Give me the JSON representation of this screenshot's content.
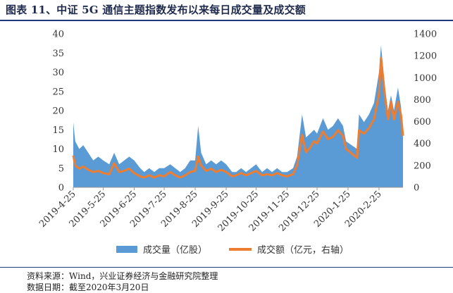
{
  "title": "图表 11、中证 5G 通信主题指数发布以来每日成交量及成交额",
  "source": "资料来源：Wind，兴业证券经济与金融研究院整理",
  "date_note": "数据日期：截至2020年3月20日",
  "chart_data": {
    "type": "area",
    "title": "",
    "x_tick_labels": [
      "2019-4-25",
      "2019-5-25",
      "2019-6-25",
      "2019-7-25",
      "2019-8-25",
      "2019-9-25",
      "2019-10-25",
      "2019-11-25",
      "2019-12-25",
      "2020-1-25",
      "2020-2-25"
    ],
    "x_range": [
      "2019-04-25",
      "2020-03-20"
    ],
    "y_left": {
      "min": 0,
      "max": 40,
      "step": 5,
      "ticks": [
        "0",
        "5",
        "10",
        "15",
        "20",
        "25",
        "30",
        "35",
        "40"
      ]
    },
    "y_right": {
      "min": 0,
      "max": 1400,
      "step": 200,
      "ticks": [
        "0",
        "200",
        "400",
        "600",
        "800",
        "1000",
        "1200",
        "1400"
      ]
    },
    "legend": {
      "position": "bottom"
    },
    "grid": false,
    "series": [
      {
        "name": "成交量（亿股）",
        "kind": "area",
        "axis": "left",
        "color": "#5b9bd5",
        "points": [
          [
            "2019-04-25",
            17
          ],
          [
            "2019-04-27",
            12
          ],
          [
            "2019-05-01",
            10
          ],
          [
            "2019-05-05",
            11
          ],
          [
            "2019-05-10",
            9
          ],
          [
            "2019-05-15",
            7
          ],
          [
            "2019-05-20",
            8
          ],
          [
            "2019-05-25",
            7
          ],
          [
            "2019-05-31",
            6
          ],
          [
            "2019-06-05",
            9
          ],
          [
            "2019-06-10",
            6
          ],
          [
            "2019-06-15",
            7
          ],
          [
            "2019-06-20",
            8
          ],
          [
            "2019-06-25",
            7
          ],
          [
            "2019-07-01",
            5
          ],
          [
            "2019-07-05",
            4
          ],
          [
            "2019-07-10",
            5
          ],
          [
            "2019-07-15",
            4
          ],
          [
            "2019-07-20",
            5
          ],
          [
            "2019-07-25",
            5
          ],
          [
            "2019-07-31",
            6
          ],
          [
            "2019-08-05",
            5
          ],
          [
            "2019-08-10",
            4
          ],
          [
            "2019-08-15",
            5
          ],
          [
            "2019-08-20",
            7
          ],
          [
            "2019-08-25",
            7
          ],
          [
            "2019-08-28",
            16
          ],
          [
            "2019-08-31",
            9
          ],
          [
            "2019-09-05",
            6
          ],
          [
            "2019-09-10",
            7
          ],
          [
            "2019-09-15",
            6
          ],
          [
            "2019-09-20",
            7
          ],
          [
            "2019-09-25",
            6
          ],
          [
            "2019-10-01",
            4
          ],
          [
            "2019-10-05",
            4
          ],
          [
            "2019-10-10",
            5
          ],
          [
            "2019-10-15",
            4
          ],
          [
            "2019-10-20",
            5
          ],
          [
            "2019-10-25",
            6
          ],
          [
            "2019-10-31",
            4
          ],
          [
            "2019-11-05",
            5
          ],
          [
            "2019-11-10",
            4
          ],
          [
            "2019-11-15",
            5
          ],
          [
            "2019-11-20",
            4
          ],
          [
            "2019-11-25",
            4
          ],
          [
            "2019-12-01",
            5
          ],
          [
            "2019-12-05",
            8
          ],
          [
            "2019-12-10",
            19
          ],
          [
            "2019-12-14",
            13
          ],
          [
            "2019-12-18",
            14
          ],
          [
            "2019-12-22",
            15
          ],
          [
            "2019-12-25",
            14
          ],
          [
            "2019-12-31",
            18
          ],
          [
            "2020-01-05",
            15
          ],
          [
            "2020-01-10",
            16
          ],
          [
            "2020-01-15",
            18
          ],
          [
            "2020-01-20",
            16
          ],
          [
            "2020-01-23",
            12
          ],
          [
            "2020-02-03",
            10
          ],
          [
            "2020-02-05",
            19
          ],
          [
            "2020-02-10",
            17
          ],
          [
            "2020-02-15",
            19
          ],
          [
            "2020-02-20",
            22
          ],
          [
            "2020-02-25",
            30
          ],
          [
            "2020-02-27",
            37
          ],
          [
            "2020-03-02",
            26
          ],
          [
            "2020-03-05",
            20
          ],
          [
            "2020-03-08",
            24
          ],
          [
            "2020-03-11",
            20
          ],
          [
            "2020-03-15",
            26
          ],
          [
            "2020-03-18",
            21
          ],
          [
            "2020-03-20",
            13
          ]
        ]
      },
      {
        "name": "成交额（亿元，右轴）",
        "kind": "line",
        "axis": "right",
        "color": "#ed7d31",
        "points": [
          [
            "2019-04-25",
            290
          ],
          [
            "2019-04-27",
            200
          ],
          [
            "2019-05-01",
            170
          ],
          [
            "2019-05-05",
            190
          ],
          [
            "2019-05-10",
            160
          ],
          [
            "2019-05-15",
            140
          ],
          [
            "2019-05-20",
            150
          ],
          [
            "2019-05-25",
            130
          ],
          [
            "2019-05-31",
            120
          ],
          [
            "2019-06-05",
            220
          ],
          [
            "2019-06-10",
            140
          ],
          [
            "2019-06-15",
            150
          ],
          [
            "2019-06-20",
            170
          ],
          [
            "2019-06-25",
            130
          ],
          [
            "2019-07-01",
            100
          ],
          [
            "2019-07-05",
            90
          ],
          [
            "2019-07-10",
            110
          ],
          [
            "2019-07-15",
            90
          ],
          [
            "2019-07-20",
            110
          ],
          [
            "2019-07-25",
            100
          ],
          [
            "2019-07-31",
            140
          ],
          [
            "2019-08-05",
            110
          ],
          [
            "2019-08-10",
            90
          ],
          [
            "2019-08-15",
            110
          ],
          [
            "2019-08-20",
            140
          ],
          [
            "2019-08-25",
            150
          ],
          [
            "2019-08-28",
            280
          ],
          [
            "2019-08-31",
            200
          ],
          [
            "2019-09-05",
            150
          ],
          [
            "2019-09-10",
            170
          ],
          [
            "2019-09-15",
            140
          ],
          [
            "2019-09-20",
            160
          ],
          [
            "2019-09-25",
            140
          ],
          [
            "2019-10-01",
            100
          ],
          [
            "2019-10-05",
            110
          ],
          [
            "2019-10-10",
            130
          ],
          [
            "2019-10-15",
            110
          ],
          [
            "2019-10-20",
            130
          ],
          [
            "2019-10-25",
            150
          ],
          [
            "2019-10-31",
            110
          ],
          [
            "2019-11-05",
            120
          ],
          [
            "2019-11-10",
            110
          ],
          [
            "2019-11-15",
            130
          ],
          [
            "2019-11-20",
            110
          ],
          [
            "2019-11-25",
            100
          ],
          [
            "2019-12-01",
            120
          ],
          [
            "2019-12-05",
            200
          ],
          [
            "2019-12-10",
            480
          ],
          [
            "2019-12-14",
            320
          ],
          [
            "2019-12-18",
            360
          ],
          [
            "2019-12-22",
            420
          ],
          [
            "2019-12-25",
            400
          ],
          [
            "2019-12-31",
            510
          ],
          [
            "2020-01-05",
            440
          ],
          [
            "2020-01-10",
            460
          ],
          [
            "2020-01-15",
            520
          ],
          [
            "2020-01-20",
            470
          ],
          [
            "2020-01-23",
            350
          ],
          [
            "2020-02-03",
            270
          ],
          [
            "2020-02-05",
            520
          ],
          [
            "2020-02-10",
            490
          ],
          [
            "2020-02-15",
            540
          ],
          [
            "2020-02-20",
            620
          ],
          [
            "2020-02-25",
            850
          ],
          [
            "2020-02-27",
            1180
          ],
          [
            "2020-03-02",
            830
          ],
          [
            "2020-03-05",
            620
          ],
          [
            "2020-03-08",
            780
          ],
          [
            "2020-03-11",
            620
          ],
          [
            "2020-03-15",
            780
          ],
          [
            "2020-03-18",
            660
          ],
          [
            "2020-03-20",
            470
          ]
        ]
      }
    ]
  }
}
